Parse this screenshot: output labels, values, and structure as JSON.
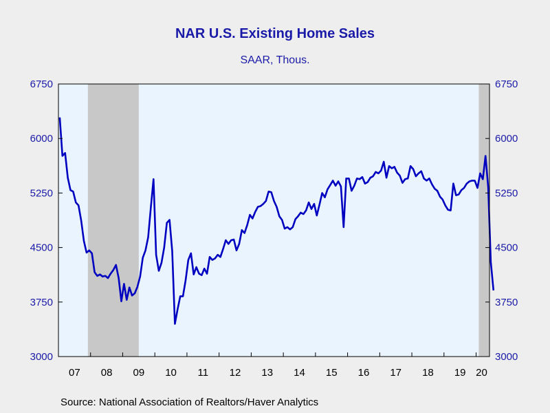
{
  "chart_data": {
    "type": "line",
    "title": "NAR U.S. Existing Home Sales",
    "subtitle": "SAAR, Thous.",
    "source": "Source:  National Association of Realtors/Haver Analytics",
    "ylim": [
      3000,
      6750
    ],
    "yticks": [
      "6750",
      "6000",
      "5250",
      "4500",
      "3750",
      "3000"
    ],
    "xticks": [
      "07",
      "08",
      "09",
      "10",
      "11",
      "12",
      "13",
      "14",
      "15",
      "16",
      "17",
      "18",
      "19",
      "20"
    ],
    "x_start": "2007-01",
    "x_end": "2020-05",
    "recessions": [
      [
        "2007-12",
        "2009-06"
      ],
      [
        "2020-02",
        "2020-05"
      ]
    ],
    "colors": {
      "line": "#0000c0",
      "plot_bg": "#eaf4fe",
      "recession": "#c8c8c8",
      "text": "#1a1aa8"
    },
    "grid": false,
    "series": [
      {
        "values": [
          6290,
          5760,
          5800,
          5460,
          5290,
          5270,
          5120,
          5080,
          4870,
          4590,
          4430,
          4460,
          4420,
          4160,
          4110,
          4130,
          4100,
          4110,
          4080,
          4140,
          4190,
          4260,
          4080,
          3760,
          4000,
          3780,
          3950,
          3840,
          3870,
          3960,
          4100,
          4360,
          4460,
          4640,
          5050,
          5440,
          4400,
          4180,
          4290,
          4500,
          4840,
          4880,
          4450,
          3450,
          3650,
          3830,
          3830,
          4050,
          4330,
          4420,
          4130,
          4230,
          4140,
          4120,
          4210,
          4140,
          4370,
          4330,
          4350,
          4400,
          4370,
          4480,
          4600,
          4550,
          4600,
          4610,
          4460,
          4550,
          4740,
          4700,
          4810,
          4950,
          4900,
          4990,
          5060,
          5070,
          5100,
          5140,
          5270,
          5260,
          5140,
          5060,
          4930,
          4880,
          4760,
          4780,
          4750,
          4780,
          4890,
          4930,
          4980,
          4960,
          5010,
          5120,
          5030,
          5100,
          4940,
          5090,
          5250,
          5190,
          5300,
          5360,
          5420,
          5350,
          5410,
          5340,
          4780,
          5450,
          5450,
          5280,
          5350,
          5450,
          5440,
          5470,
          5380,
          5400,
          5460,
          5480,
          5540,
          5520,
          5560,
          5680,
          5460,
          5620,
          5590,
          5610,
          5530,
          5490,
          5390,
          5440,
          5450,
          5620,
          5580,
          5480,
          5520,
          5550,
          5450,
          5420,
          5450,
          5370,
          5310,
          5280,
          5200,
          5160,
          5080,
          5020,
          5010,
          5380,
          5220,
          5230,
          5290,
          5320,
          5380,
          5410,
          5420,
          5420,
          5320,
          5520,
          5440,
          5760,
          5330,
          4300,
          3910
        ]
      }
    ]
  }
}
